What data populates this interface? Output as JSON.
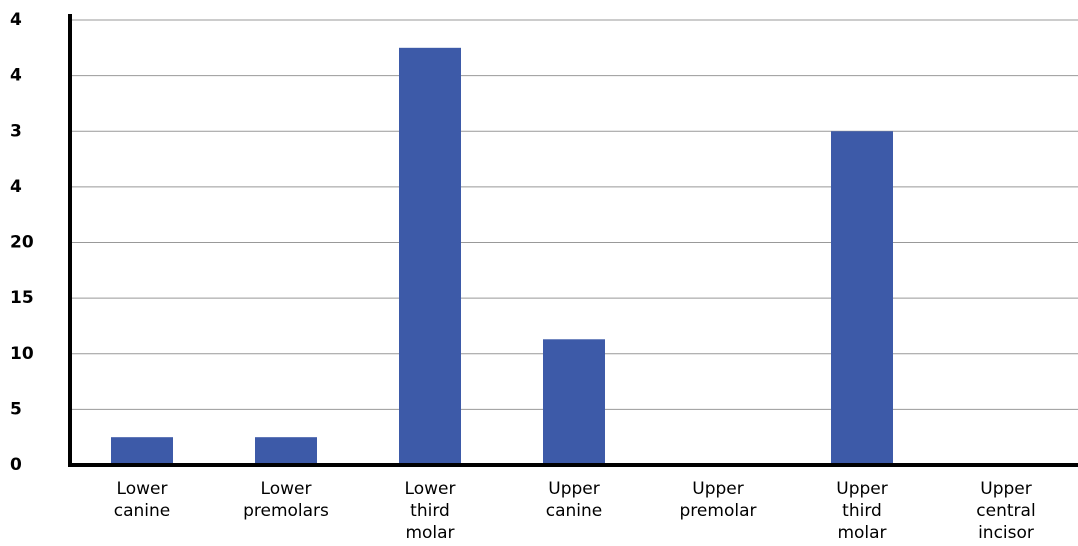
{
  "chart_data": {
    "type": "bar",
    "categories": [
      "Lower\ncanine",
      "Lower\npremolars",
      "Lower\nthird\nmolar",
      "Upper\ncanine",
      "Upper\npremolar",
      "Upper\nthird\nmolar",
      "Upper\ncentral\nincisor"
    ],
    "values": [
      2.5,
      2.5,
      37.5,
      11.3,
      0,
      30,
      0
    ],
    "color": "#3d5aa8",
    "ylim": [
      0,
      40
    ],
    "yticks": [
      0,
      5,
      10,
      15,
      20,
      {
        "value": 25,
        "label": "4"
      },
      {
        "value": 30,
        "label": "3"
      },
      {
        "value": 35,
        "label": "4"
      },
      {
        "value": 40,
        "label": "4"
      }
    ],
    "grid": true
  }
}
